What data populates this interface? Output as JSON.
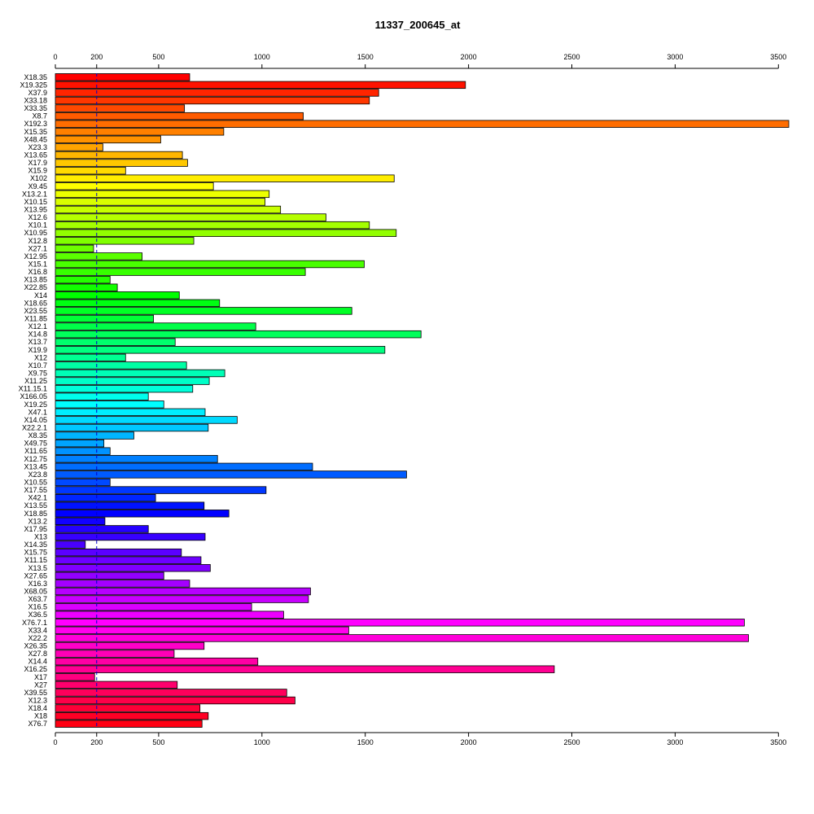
{
  "chart_data": {
    "type": "bar",
    "orientation": "horizontal",
    "title": "11337_200645_at",
    "xlim": [
      0,
      3550
    ],
    "x_ticks": [
      0,
      200,
      500,
      1000,
      1500,
      2000,
      2500,
      3000,
      3500
    ],
    "reference_line": 200,
    "axes": "top and bottom",
    "grid": false,
    "legend": "none",
    "bar_colors": "rainbow palette from red (top) through yellow, green, cyan, blue, magenta back to red (bottom)",
    "categories": [
      "X18.35",
      "X19.325",
      "X37.9",
      "X33.18",
      "X33.35",
      "X8.7",
      "X192.3",
      "X15.35",
      "X48.45",
      "X23.3",
      "X13.65",
      "X17.9",
      "X15.9",
      "X102",
      "X9.45",
      "X13.2.1",
      "X10.15",
      "X13.95",
      "X12.6",
      "X10.1",
      "X10.95",
      "X12.8",
      "X27.1",
      "X12.95",
      "X15.1",
      "X16.8",
      "X13.85",
      "X22.85",
      "X14",
      "X18.65",
      "X23.55",
      "X11.85",
      "X12.1",
      "X14.8",
      "X13.7",
      "X19.9",
      "X12",
      "X10.7",
      "X9.75",
      "X11.25",
      "X11.15.1",
      "X166.05",
      "X19.25",
      "X47.1",
      "X14.05",
      "X22.2.1",
      "X8.35",
      "X49.75",
      "X11.65",
      "X12.75",
      "X13.45",
      "X23.8",
      "X10.55",
      "X17.55",
      "X42.1",
      "X13.55",
      "X18.85",
      "X13.2",
      "X17.95",
      "X13",
      "X14.35",
      "X15.75",
      "X11.15",
      "X13.5",
      "X27.65",
      "X16.3",
      "X68.05",
      "X63.7",
      "X16.5",
      "X36.5",
      "X76.7.1",
      "X33.4",
      "X22.2",
      "X26.35",
      "X27.8",
      "X14.4",
      "X16.25",
      "X17",
      "X27",
      "X39.55",
      "X12.3",
      "X18.4",
      "X18",
      "X76.7"
    ],
    "values": [
      650,
      1985,
      1565,
      1520,
      625,
      1200,
      3550,
      815,
      510,
      230,
      615,
      640,
      340,
      1640,
      765,
      1035,
      1015,
      1090,
      1310,
      1520,
      1650,
      670,
      185,
      420,
      1495,
      1210,
      265,
      300,
      600,
      795,
      1435,
      475,
      970,
      1770,
      580,
      1595,
      340,
      635,
      820,
      745,
      665,
      450,
      525,
      725,
      880,
      740,
      380,
      235,
      265,
      785,
      1245,
      1700,
      265,
      1020,
      485,
      720,
      840,
      240,
      450,
      725,
      145,
      610,
      705,
      750,
      525,
      650,
      1235,
      1225,
      950,
      1105,
      3335,
      1420,
      3355,
      720,
      575,
      980,
      2415,
      190,
      590,
      1120,
      1160,
      700,
      740,
      710
    ]
  }
}
